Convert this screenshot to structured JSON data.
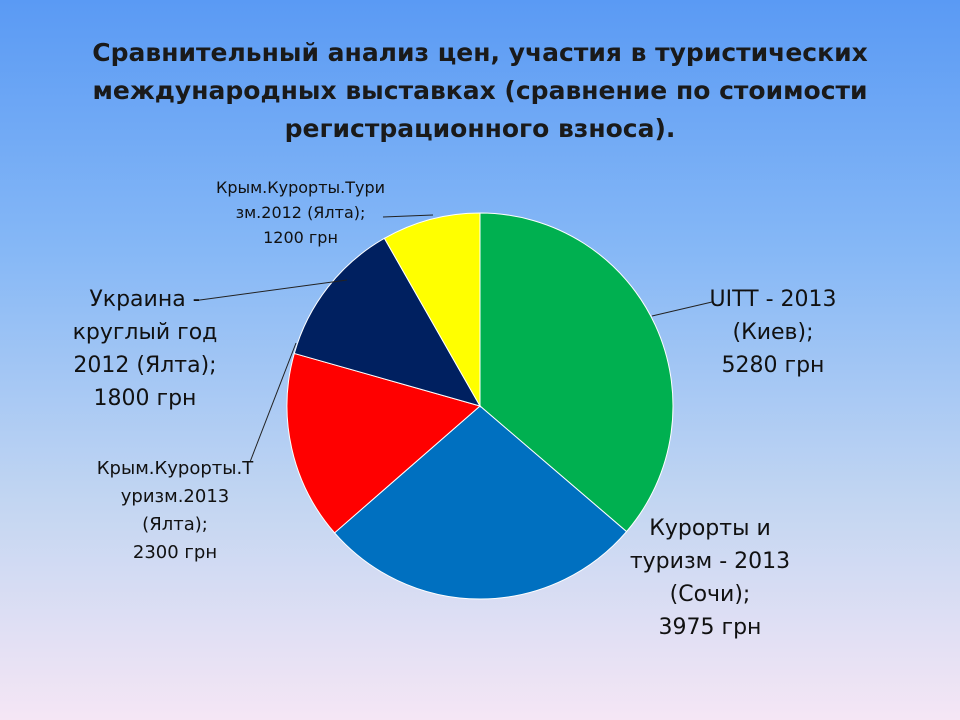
{
  "chart_data": {
    "type": "pie",
    "title": "Сравнительный анализ цен, участия в туристических международных выставках (сравнение по стоимости регистрационного взноса).",
    "categories": [
      "UITT - 2013 (Киев);",
      "Курорты и туризм - 2013 (Сочи);",
      "Крым.Курорты.Туризм.2013 (Ялта);",
      "Украина - круглый год 2012 (Ялта);",
      "Крым.Курорты.Туризм.2012 (Ялта);"
    ],
    "values": [
      5280,
      3975,
      2300,
      1800,
      1200
    ],
    "value_labels": [
      "5280 грн",
      "3975 грн",
      "2300 грн",
      "1800 грн",
      "1200 грн"
    ],
    "colors": [
      "#00b050",
      "#0070c0",
      "#ff0000",
      "#002060",
      "#ffff00"
    ]
  }
}
